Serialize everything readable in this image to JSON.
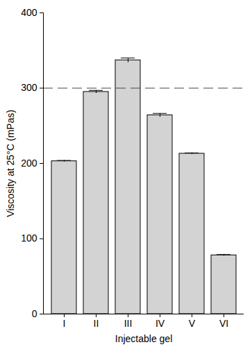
{
  "chart_data": {
    "type": "bar",
    "x_label": "Injectable gel",
    "y_label": "Viscosity at 25°C (mPas)",
    "categories": [
      "I",
      "II",
      "III",
      "IV",
      "V",
      "VI"
    ],
    "values": [
      203,
      295,
      337,
      264,
      213,
      78
    ],
    "errors": [
      1,
      2,
      3,
      2.5,
      1,
      1
    ],
    "reference_value": 300,
    "color": "#d3d3d3",
    "ylim": [
      0,
      400
    ],
    "yticks": [
      0,
      100,
      200,
      300,
      400
    ],
    "grid": false
  }
}
